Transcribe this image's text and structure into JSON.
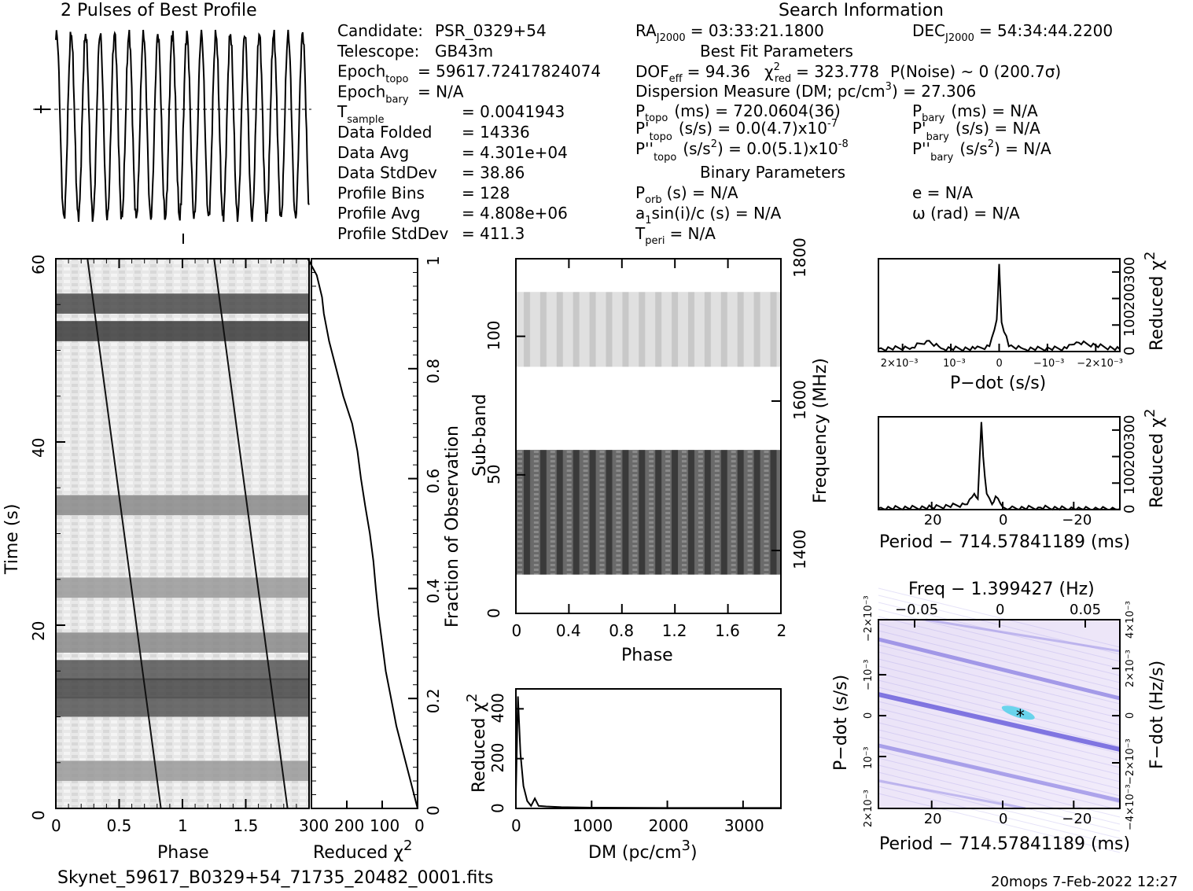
{
  "title_profile": "2 Pulses of Best Profile",
  "title_search": "Search Information",
  "info_left": [
    {
      "label": "Candidate:",
      "value": "PSR_0329+54"
    },
    {
      "label": "Telescope:",
      "value": "GB43m"
    },
    {
      "label": "Epoch",
      "sub": "topo",
      "value": "= 59617.72417824074"
    },
    {
      "label": "Epoch",
      "sub": "bary",
      "value": "= N/A"
    },
    {
      "label": "T",
      "sub": "sample",
      "value": "=   0.0041943"
    },
    {
      "label": "Data Folded",
      "value": "=   14336"
    },
    {
      "label": "Data Avg",
      "value": "=   4.301e+04"
    },
    {
      "label": "Data StdDev",
      "value": "=   38.86"
    },
    {
      "label": "Profile Bins",
      "value": "=   128"
    },
    {
      "label": "Profile Avg",
      "value": "=   4.808e+06"
    },
    {
      "label": "Profile StdDev",
      "value": "=   411.3"
    }
  ],
  "info_right": {
    "ra": "RA",
    "ra_sub": "J2000",
    "ra_value": "= 03:33:21.1800",
    "dec": "DEC",
    "dec_sub": "J2000",
    "dec_value": "= 54:34:44.2200",
    "best_fit": "Best Fit Parameters",
    "dof": "DOF",
    "dof_sub": "eff",
    "dof_value": "= 94.36",
    "chi": "χ",
    "chi_sup": "2",
    "chi_sub": "red",
    "chi_value": "= 323.778",
    "pnoise": "P(Noise) ~ 0    (200.7σ)",
    "dm_line": "Dispersion Measure (DM; pc/cm",
    "dm_sup": "3",
    "dm_value": ") = 27.306",
    "ptopo": "P",
    "ptopo_sub": "topo",
    "ptopo_value": "(ms) =  720.0604(36)",
    "pbary": "P",
    "pbary_sub": "bary",
    "pbary_value": "(ms) = N/A",
    "pdtopo": "P'",
    "pdtopo_sub": "topo",
    "pdtopo_value": "(s/s) = 0.0(4.7)x10",
    "pdtopo_exp": "-7",
    "pdbary": "P'",
    "pdbary_sub": "bary",
    "pdbary_value": "(s/s) = N/A",
    "pddtopo": "P''",
    "pddtopo_sub": "topo",
    "pddtopo_value": "(s/s",
    "pddtopo_sup": "2",
    "pddtopo_value2": ") = 0.0(5.1)x10",
    "pddtopo_exp": "-8",
    "pddbary": "P''",
    "pddbary_sub": "bary",
    "pddbary_value": "(s/s",
    "pddbary_sup": "2",
    "pddbary_value2": ") = N/A",
    "binary": "Binary Parameters",
    "porb": "P",
    "porb_sub": "orb",
    "porb_value": "(s) = N/A",
    "ecc": "e = N/A",
    "a1": "a",
    "a1_sub": "1",
    "a1_value": "sin(i)/c (s) = N/A",
    "omega": "ω (rad) = N/A",
    "tperi": "T",
    "tperi_sub": "peri",
    "tperi_value": "= N/A"
  },
  "footer_file": "Skynet_59617_B0329+54_71735_20482_0001.fits",
  "footer_stamp": "20mops   7-Feb-2022 12:27",
  "chart_data": [
    {
      "type": "line",
      "title": "2 Pulses of Best Profile",
      "note": "profile plotted across 2 pulses of phase; no printed axes",
      "x": [
        0,
        0.05,
        0.1,
        0.15,
        0.2,
        0.25,
        0.3,
        0.35,
        0.4,
        0.45,
        0.5,
        0.55,
        0.6,
        0.65,
        0.7,
        0.75,
        0.8,
        0.85,
        0.9,
        0.95,
        1.0,
        1.05,
        1.1,
        1.15,
        1.2,
        1.25,
        1.3,
        1.35,
        1.4,
        1.45,
        1.5,
        1.55,
        1.6,
        1.65,
        1.7,
        1.75,
        1.8,
        1.85,
        1.9,
        1.95,
        2.0
      ],
      "values": [
        0.7,
        0.95,
        0.1,
        0.9,
        0.05,
        0.95,
        0.1,
        0.92,
        0.02,
        0.95,
        0.05,
        0.95,
        0.1,
        0.9,
        0.05,
        0.95,
        0.0,
        0.9,
        0.1,
        0.92,
        0.6,
        0.98,
        0.1,
        0.95,
        0.05,
        0.92,
        0.1,
        0.95,
        0.05,
        0.96,
        0.05,
        0.92,
        0.05,
        0.95,
        0.1,
        0.95,
        0.02,
        0.9,
        0.1,
        0.88,
        0.5
      ]
    },
    {
      "type": "heatmap",
      "name": "time-phase",
      "xlabel": "Phase",
      "ylabel": "Time (s)",
      "xlim": [
        0,
        2
      ],
      "ylim": [
        0,
        60
      ],
      "xticks": [
        "0",
        "0.5",
        "1",
        "1.5"
      ],
      "yticks": [
        "0",
        "20",
        "40",
        "60"
      ],
      "dark_rows": [
        52,
        55,
        33,
        24,
        18,
        15,
        13,
        11,
        4
      ],
      "pulse_track_x_at_t0": [
        0.83,
        1.83
      ],
      "pulse_track_x_at_t60": [
        0.25,
        1.25
      ]
    },
    {
      "type": "line",
      "name": "reduced-chi2-vs-time",
      "xlabel": "Reduced χ",
      "xlabel_sup": "2",
      "ylabel": "Fraction of Observation",
      "xlim": [
        300,
        0
      ],
      "xticks": [
        "300",
        "200",
        "100",
        "0"
      ],
      "yticks": [
        "0",
        "0.2",
        "0.4",
        "0.6",
        "0.8",
        "1"
      ],
      "x": [
        0,
        8,
        20,
        40,
        60,
        75,
        90,
        100,
        110,
        118,
        125,
        135,
        148,
        160,
        170,
        185,
        210,
        230,
        250,
        265,
        270,
        285,
        310
      ],
      "y": [
        0,
        0.02,
        0.05,
        0.1,
        0.15,
        0.2,
        0.25,
        0.3,
        0.35,
        0.4,
        0.45,
        0.5,
        0.55,
        0.6,
        0.65,
        0.7,
        0.75,
        0.8,
        0.85,
        0.9,
        0.93,
        0.97,
        1.0
      ]
    },
    {
      "type": "heatmap",
      "name": "subband-phase",
      "xlabel": "Phase",
      "ylabel": "Sub-band",
      "y2label": "Frequency (MHz)",
      "xlim": [
        0,
        2
      ],
      "ylim": [
        0,
        128
      ],
      "xticks": [
        "0",
        "0.4",
        "0.8",
        "1.2",
        "1.6",
        "2"
      ],
      "yticks": [
        "0",
        "50",
        "100"
      ],
      "y2ticks": [
        "1400",
        "1600",
        "1800"
      ],
      "filled_bands": [
        [
          14,
          59
        ],
        [
          89,
          116
        ]
      ]
    },
    {
      "type": "line",
      "name": "reduced-chi2-vs-dm",
      "xlabel": "DM (pc/cm",
      "xlabel_sup": "3",
      "ylabel": "Reduced χ",
      "ylabel_sup": "2",
      "xlim": [
        0,
        3500
      ],
      "ylim": [
        0,
        480
      ],
      "xticks": [
        "0",
        "1000",
        "2000",
        "3000"
      ],
      "yticks": [
        "0",
        "200",
        "400"
      ],
      "x": [
        0,
        27,
        60,
        100,
        150,
        200,
        250,
        300,
        400,
        600,
        1000,
        2000,
        3500
      ],
      "y": [
        60,
        450,
        220,
        90,
        30,
        10,
        40,
        10,
        8,
        5,
        3,
        2,
        2
      ]
    },
    {
      "type": "line",
      "name": "reduced-chi2-vs-pdot",
      "xlabel": "P−dot (s/s)",
      "ylabel": "Reduced χ",
      "ylabel_sup": "2",
      "xlim": [
        0.0025,
        -0.0025
      ],
      "ylim": [
        0,
        350
      ],
      "xticks": [
        "2×10⁻³",
        "10⁻³",
        "0",
        "−10⁻³",
        "−2×10⁻³"
      ],
      "yticks": [
        "0",
        "100",
        "200",
        "300"
      ],
      "x": [
        0.0025,
        0.0018,
        0.0015,
        0.0012,
        0.0005,
        0.0002,
        5e-05,
        0.0,
        -5e-05,
        -0.0002,
        -0.0005,
        -0.0014,
        -0.0016,
        -0.0025
      ],
      "y": [
        10,
        15,
        40,
        12,
        10,
        20,
        120,
        330,
        110,
        20,
        10,
        12,
        35,
        8
      ]
    },
    {
      "type": "line",
      "name": "reduced-chi2-vs-period",
      "xlabel": "Period − 714.57841189 (ms)",
      "ylabel": "Reduced χ",
      "ylabel_sup": "2",
      "xlim": [
        35,
        -33
      ],
      "ylim": [
        0,
        350
      ],
      "xticks": [
        "20",
        "0",
        "−20"
      ],
      "yticks": [
        "0",
        "100",
        "200",
        "300"
      ],
      "x": [
        35,
        20,
        10,
        8,
        7,
        6,
        5.5,
        4.5,
        3,
        2,
        0,
        -2,
        -10,
        -20,
        -33
      ],
      "y": [
        5,
        8,
        20,
        60,
        40,
        330,
        200,
        60,
        20,
        50,
        10,
        4,
        8,
        3,
        2
      ]
    },
    {
      "type": "heatmap",
      "name": "pdot-period-plane",
      "top_label": "Freq − 1.399427 (Hz)",
      "xlabel": "Period − 714.57841189 (ms)",
      "ylabel": "P−dot (s/s)",
      "y2label": "F−dot (Hz/s)",
      "xticks": [
        "20",
        "0",
        "−20"
      ],
      "top_ticks": [
        "−0.05",
        "0",
        "0.05"
      ],
      "yticks": [
        "2×10⁻³",
        "10⁻³",
        "0",
        "−10⁻³",
        "−2×10⁻³"
      ],
      "y2ticks": [
        "−4×10⁻³",
        "−2×10⁻³",
        "0",
        "2×10⁻³",
        "4×10⁻³"
      ],
      "best_x": -5.5,
      "best_y": 0
    }
  ]
}
